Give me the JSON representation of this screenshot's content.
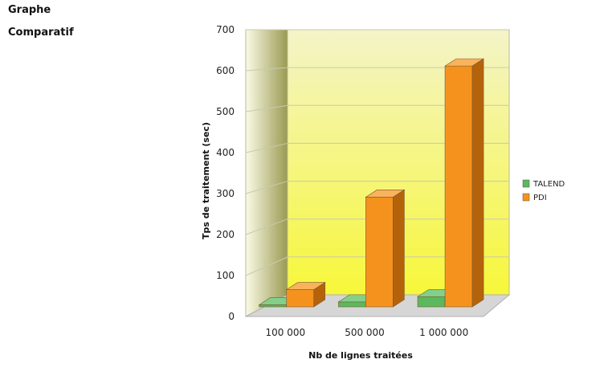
{
  "page": {
    "title_line1": "Graphe",
    "title_line2": "Comparatif"
  },
  "chart_data": {
    "type": "bar",
    "title": "",
    "xlabel": "Nb de lignes traitées",
    "ylabel": "Tps de traitement (sec)",
    "ylim": [
      0,
      700
    ],
    "yticks": [
      0,
      100,
      200,
      300,
      400,
      500,
      600,
      700
    ],
    "categories": [
      "100 000",
      "500 000",
      "1 000 000"
    ],
    "series": [
      {
        "name": "TALEND",
        "values": [
          5,
          12,
          25
        ],
        "color": "#5cb85c",
        "top_color": "#82d08a",
        "side_color": "#3f8a3f"
      },
      {
        "name": "PDI",
        "values": [
          42,
          268,
          588
        ],
        "color": "#f5921e",
        "top_color": "#f9b35c",
        "side_color": "#b5630b"
      }
    ],
    "grid": true,
    "legend_position": "right",
    "style": "3d",
    "wall_colors": {
      "top": "#f4f4c8",
      "bottom": "#f7f73a",
      "side_light": "#fbfbe6",
      "side_dark": "#9a9a52"
    }
  }
}
